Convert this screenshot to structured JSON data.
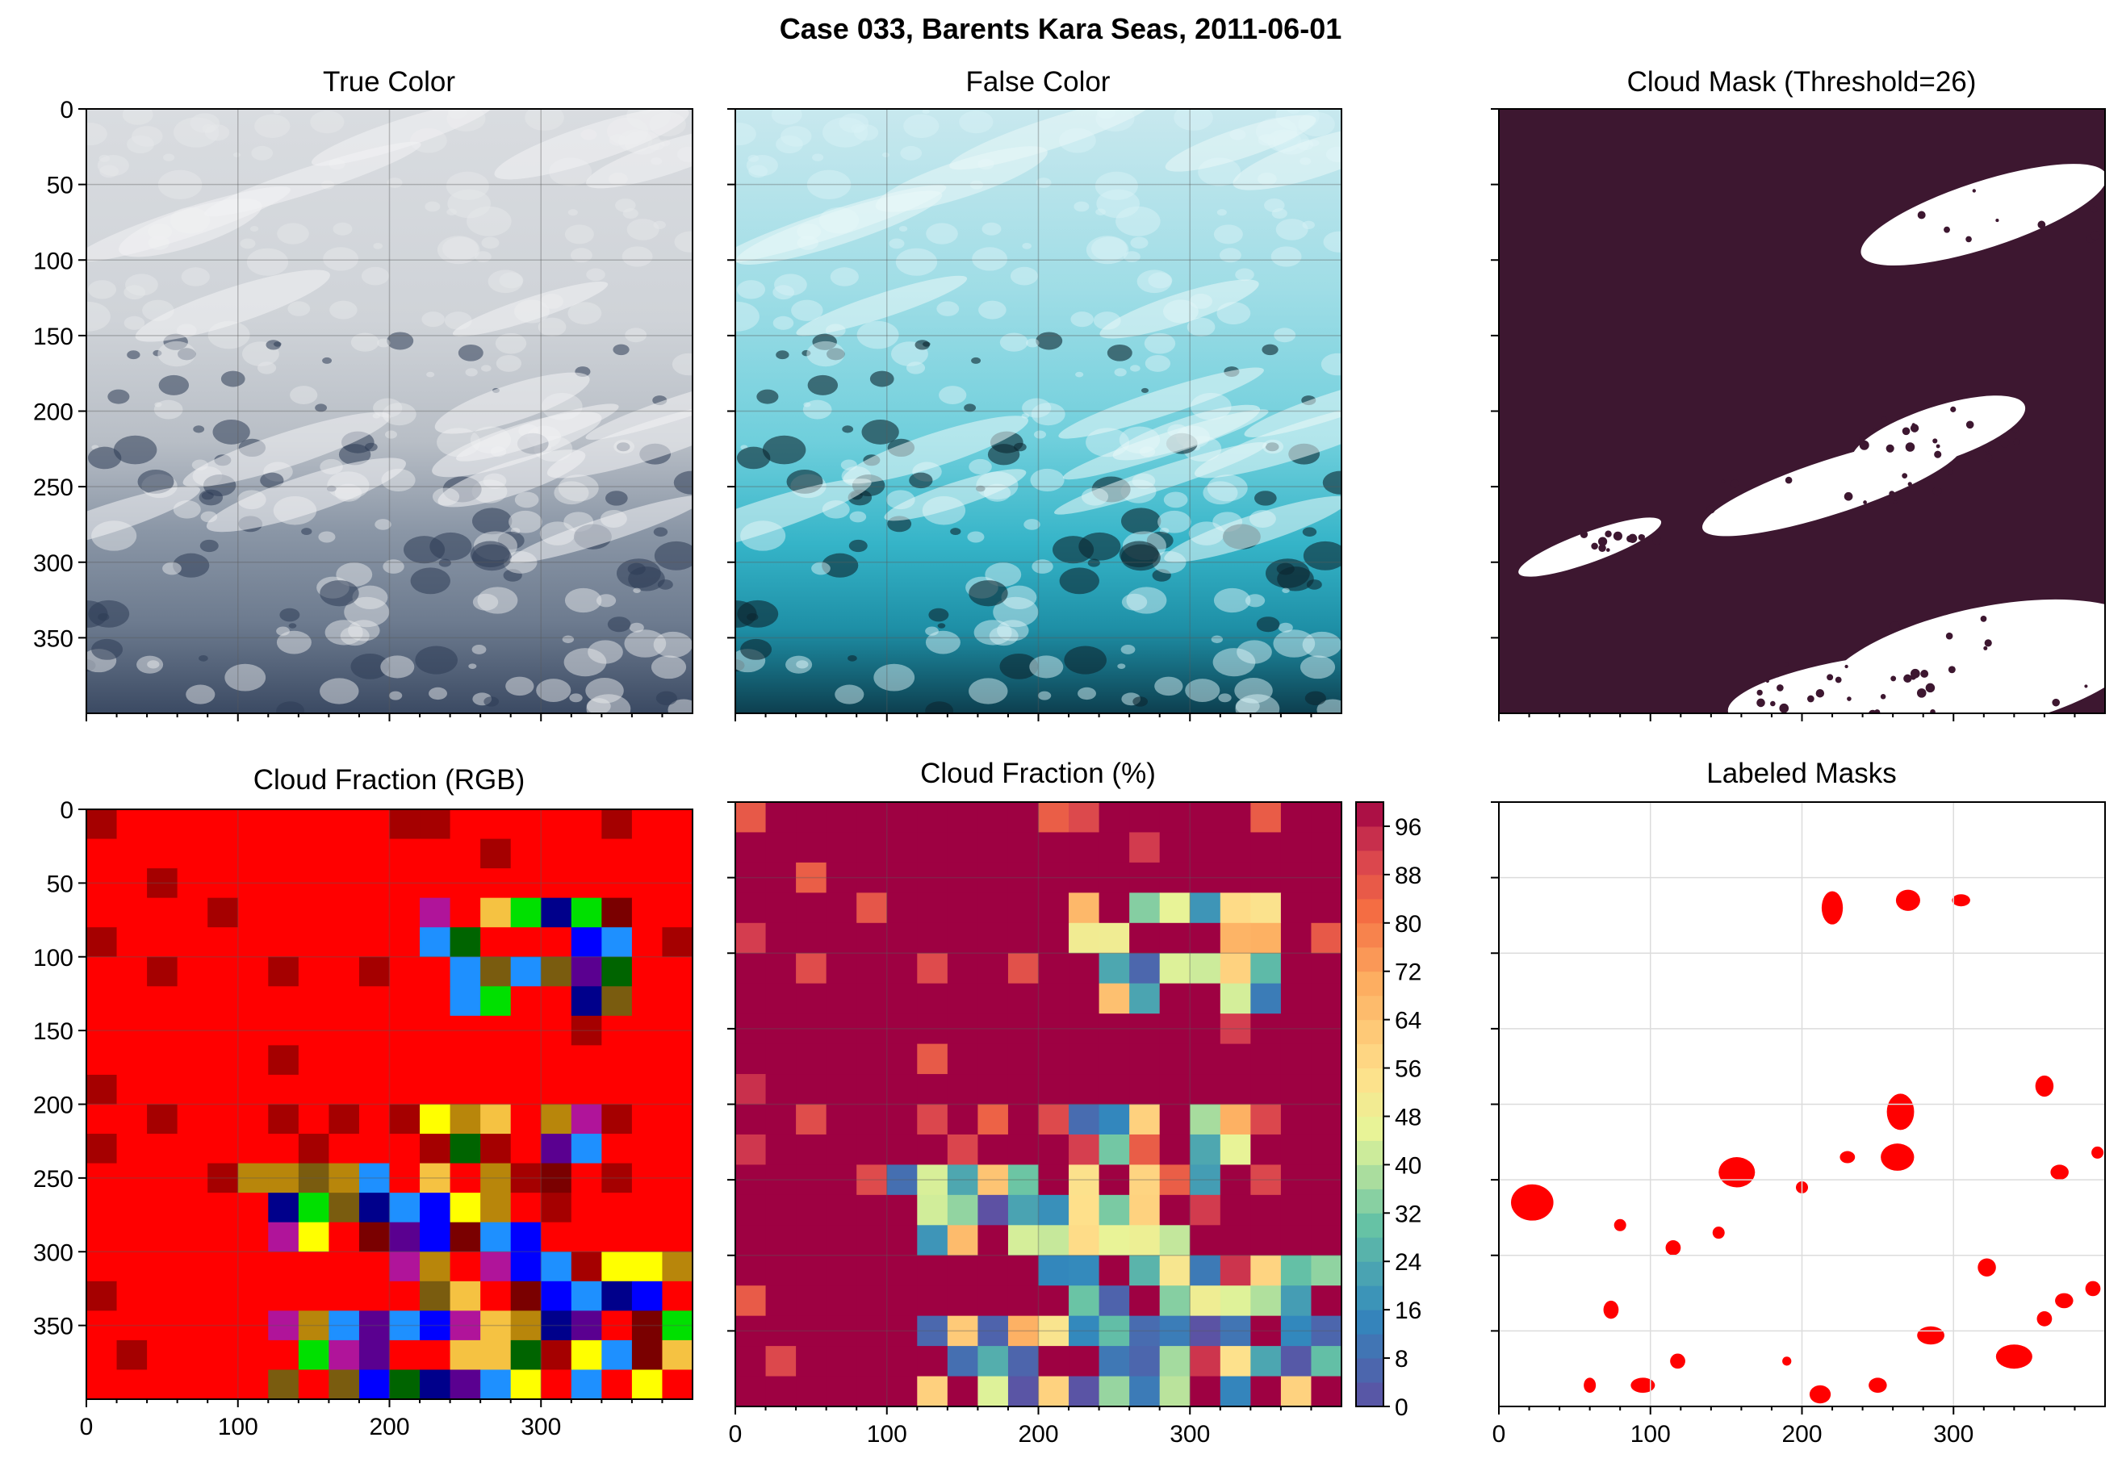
{
  "figure": {
    "suptitle": "Case 033, Barents Kara Seas, 2011-06-01"
  },
  "chart_data": [
    {
      "id": "true-color",
      "type": "image",
      "title": "True Color",
      "xlim": [
        0,
        400
      ],
      "ylim": [
        400,
        0
      ],
      "xticks": [],
      "yticks": [
        0,
        50,
        100,
        150,
        200,
        250,
        300,
        350
      ],
      "grid": true
    },
    {
      "id": "false-color",
      "type": "image",
      "title": "False Color",
      "xlim": [
        0,
        400
      ],
      "ylim": [
        400,
        0
      ],
      "xticks": [],
      "yticks": [],
      "grid": true
    },
    {
      "id": "cloud-mask",
      "type": "image",
      "title": "Cloud Mask (Threshold=26)",
      "xlim": [
        0,
        400
      ],
      "ylim": [
        400,
        0
      ],
      "xticks": [],
      "yticks": [],
      "colors": {
        "cloud": "#3d1730",
        "clear": "#ffffff"
      }
    },
    {
      "id": "cloud-fraction-rgb",
      "type": "heatmap",
      "title": "Cloud Fraction (RGB)",
      "xlim": [
        0,
        400
      ],
      "ylim": [
        400,
        0
      ],
      "xticks": [
        0,
        100,
        200,
        300
      ],
      "yticks": [
        0,
        50,
        100,
        150,
        200,
        250,
        300,
        350
      ],
      "grid": true
    },
    {
      "id": "cloud-fraction-pct",
      "type": "heatmap",
      "title": "Cloud Fraction (%)",
      "xlim": [
        0,
        400
      ],
      "ylim": [
        400,
        0
      ],
      "xticks": [
        0,
        100,
        200,
        300
      ],
      "yticks": [],
      "colorbar": {
        "min": 0,
        "max": 100,
        "ticks": [
          0,
          8,
          16,
          24,
          32,
          40,
          48,
          56,
          64,
          72,
          80,
          88,
          96
        ]
      },
      "grid": true
    },
    {
      "id": "labeled-masks",
      "type": "image",
      "title": "Labeled Masks",
      "xlim": [
        0,
        400
      ],
      "ylim": [
        400,
        0
      ],
      "xticks": [
        0,
        100,
        200,
        300
      ],
      "yticks": [],
      "grid": true,
      "mask_color": "#ff0000"
    }
  ]
}
